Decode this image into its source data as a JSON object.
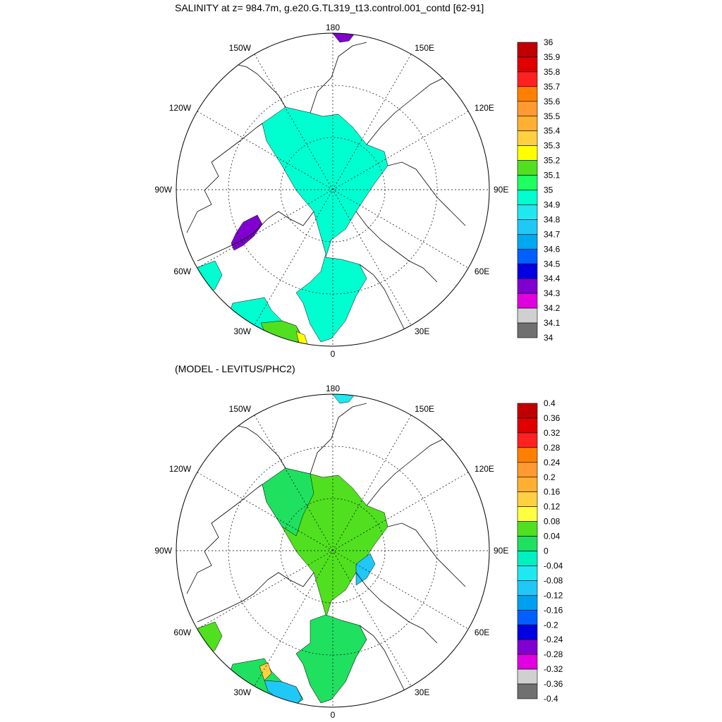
{
  "panels": [
    {
      "id": "salinity",
      "title": "SALINITY at z= 984.7m, g.e20.G.TL319_t13.control.001_contd [62-91]",
      "lon_labels": [
        {
          "lon": 180,
          "text": "180"
        },
        {
          "lon": -150,
          "text": "150W"
        },
        {
          "lon": 150,
          "text": "150E"
        },
        {
          "lon": -120,
          "text": "120W"
        },
        {
          "lon": 120,
          "text": "120E"
        },
        {
          "lon": -90,
          "text": "90W"
        },
        {
          "lon": 90,
          "text": "90E"
        },
        {
          "lon": -60,
          "text": "60W"
        },
        {
          "lon": 60,
          "text": "60E"
        },
        {
          "lon": -30,
          "text": "30W"
        },
        {
          "lon": 30,
          "text": "30E"
        },
        {
          "lon": 0,
          "text": "0"
        }
      ],
      "colorbar": {
        "labels": [
          "36",
          "35.9",
          "35.8",
          "35.7",
          "35.6",
          "35.5",
          "35.4",
          "35.3",
          "35.2",
          "35.1",
          "35",
          "34.9",
          "34.8",
          "34.7",
          "34.6",
          "34.5",
          "34.4",
          "34.3",
          "34.2",
          "34.1",
          "34"
        ],
        "colors": [
          "#c00000",
          "#e00000",
          "#ff2020",
          "#ff8000",
          "#ff9a30",
          "#ffb030",
          "#ffd040",
          "#ffff00",
          "#50e020",
          "#20ff60",
          "#00ffd0",
          "#20e8f0",
          "#20c8f8",
          "#00a8f0",
          "#0060ff",
          "#0000e0",
          "#8000d0",
          "#e000e0",
          "#d0d0d0",
          "#707070"
        ]
      }
    },
    {
      "id": "difference",
      "title": "(MODEL - LEVITUS/PHC2)",
      "lon_labels": [
        {
          "lon": 180,
          "text": "180"
        },
        {
          "lon": -150,
          "text": "150W"
        },
        {
          "lon": 150,
          "text": "150E"
        },
        {
          "lon": -120,
          "text": "120W"
        },
        {
          "lon": 120,
          "text": "120E"
        },
        {
          "lon": -90,
          "text": "90W"
        },
        {
          "lon": 90,
          "text": "90E"
        },
        {
          "lon": -60,
          "text": "60W"
        },
        {
          "lon": 60,
          "text": "60E"
        },
        {
          "lon": -30,
          "text": "30W"
        },
        {
          "lon": 30,
          "text": "30E"
        },
        {
          "lon": 0,
          "text": "0"
        }
      ],
      "colorbar": {
        "labels": [
          "0.4",
          "0.36",
          "0.32",
          "0.28",
          "0.24",
          "0.2",
          "0.16",
          "0.12",
          "0.08",
          "0.04",
          "0",
          "-0.04",
          "-0.08",
          "-0.12",
          "-0.16",
          "-0.2",
          "-0.24",
          "-0.28",
          "-0.32",
          "-0.36",
          "-0.4"
        ],
        "colors": [
          "#c00000",
          "#e00000",
          "#ff2020",
          "#ff8000",
          "#ff9a30",
          "#ffb030",
          "#ffd040",
          "#ffff40",
          "#50e020",
          "#20e060",
          "#00f0c0",
          "#20e8f0",
          "#20c8f8",
          "#00a0f0",
          "#0060ff",
          "#0000e0",
          "#8000d0",
          "#e000e0",
          "#d0d0d0",
          "#707070"
        ]
      }
    }
  ],
  "region_colors": {
    "basin_salinity": "#00ffd0",
    "greenland_anomaly": "#8000d0",
    "basin_difference_main": "#20e060",
    "basin_difference_high": "#50e020",
    "negative_anomaly": "#20c8f8"
  }
}
